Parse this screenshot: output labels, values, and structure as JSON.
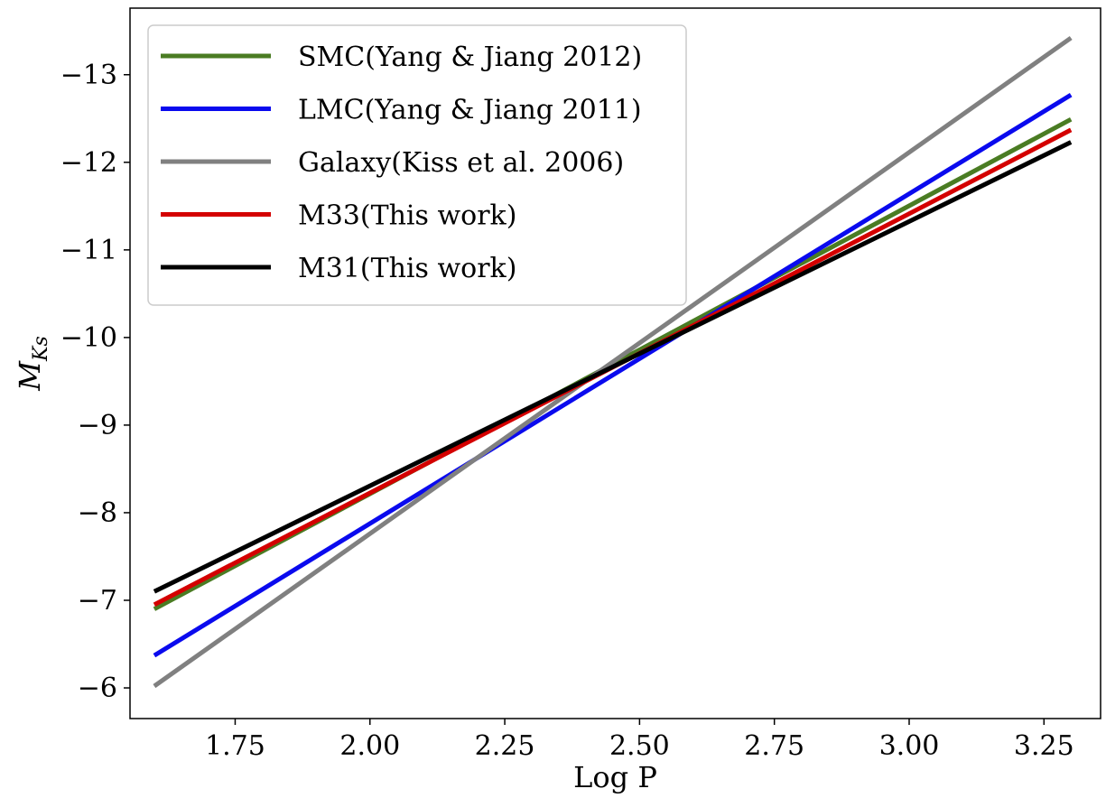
{
  "chart_data": {
    "type": "line",
    "title": "",
    "xlabel": "Log P",
    "ylabel_main": "M",
    "ylabel_sub": "Ks",
    "xlim": [
      1.555,
      3.355
    ],
    "ylim": [
      -5.65,
      -13.76
    ],
    "y_inverted": true,
    "xticks": [
      1.75,
      2.0,
      2.25,
      2.5,
      2.75,
      3.0,
      3.25
    ],
    "xtick_labels": [
      "1.75",
      "2.00",
      "2.25",
      "2.50",
      "2.75",
      "3.00",
      "3.25"
    ],
    "yticks": [
      -6,
      -7,
      -8,
      -9,
      -10,
      -11,
      -12,
      -13
    ],
    "ytick_labels": [
      "−6",
      "−7",
      "−8",
      "−9",
      "−10",
      "−11",
      "−12",
      "−13"
    ],
    "grid": false,
    "legend_position": "top-left",
    "series": [
      {
        "name": "SMC(Yang & Jiang 2012)",
        "color": "#4a7c23",
        "x": [
          1.6,
          3.3
        ],
        "y": [
          -6.9,
          -12.49
        ]
      },
      {
        "name": "LMC(Yang & Jiang 2011)",
        "color": "#0a0aee",
        "x": [
          1.6,
          3.3
        ],
        "y": [
          -6.37,
          -12.77
        ]
      },
      {
        "name": "Galaxy(Kiss et al. 2006)",
        "color": "#808080",
        "x": [
          1.6,
          3.3
        ],
        "y": [
          -6.02,
          -13.42
        ]
      },
      {
        "name": "M33(This work)",
        "color": "#d40000",
        "x": [
          1.6,
          3.3
        ],
        "y": [
          -6.95,
          -12.37
        ]
      },
      {
        "name": "M31(This work)",
        "color": "#000000",
        "x": [
          1.6,
          3.3
        ],
        "y": [
          -7.1,
          -12.23
        ]
      }
    ]
  }
}
